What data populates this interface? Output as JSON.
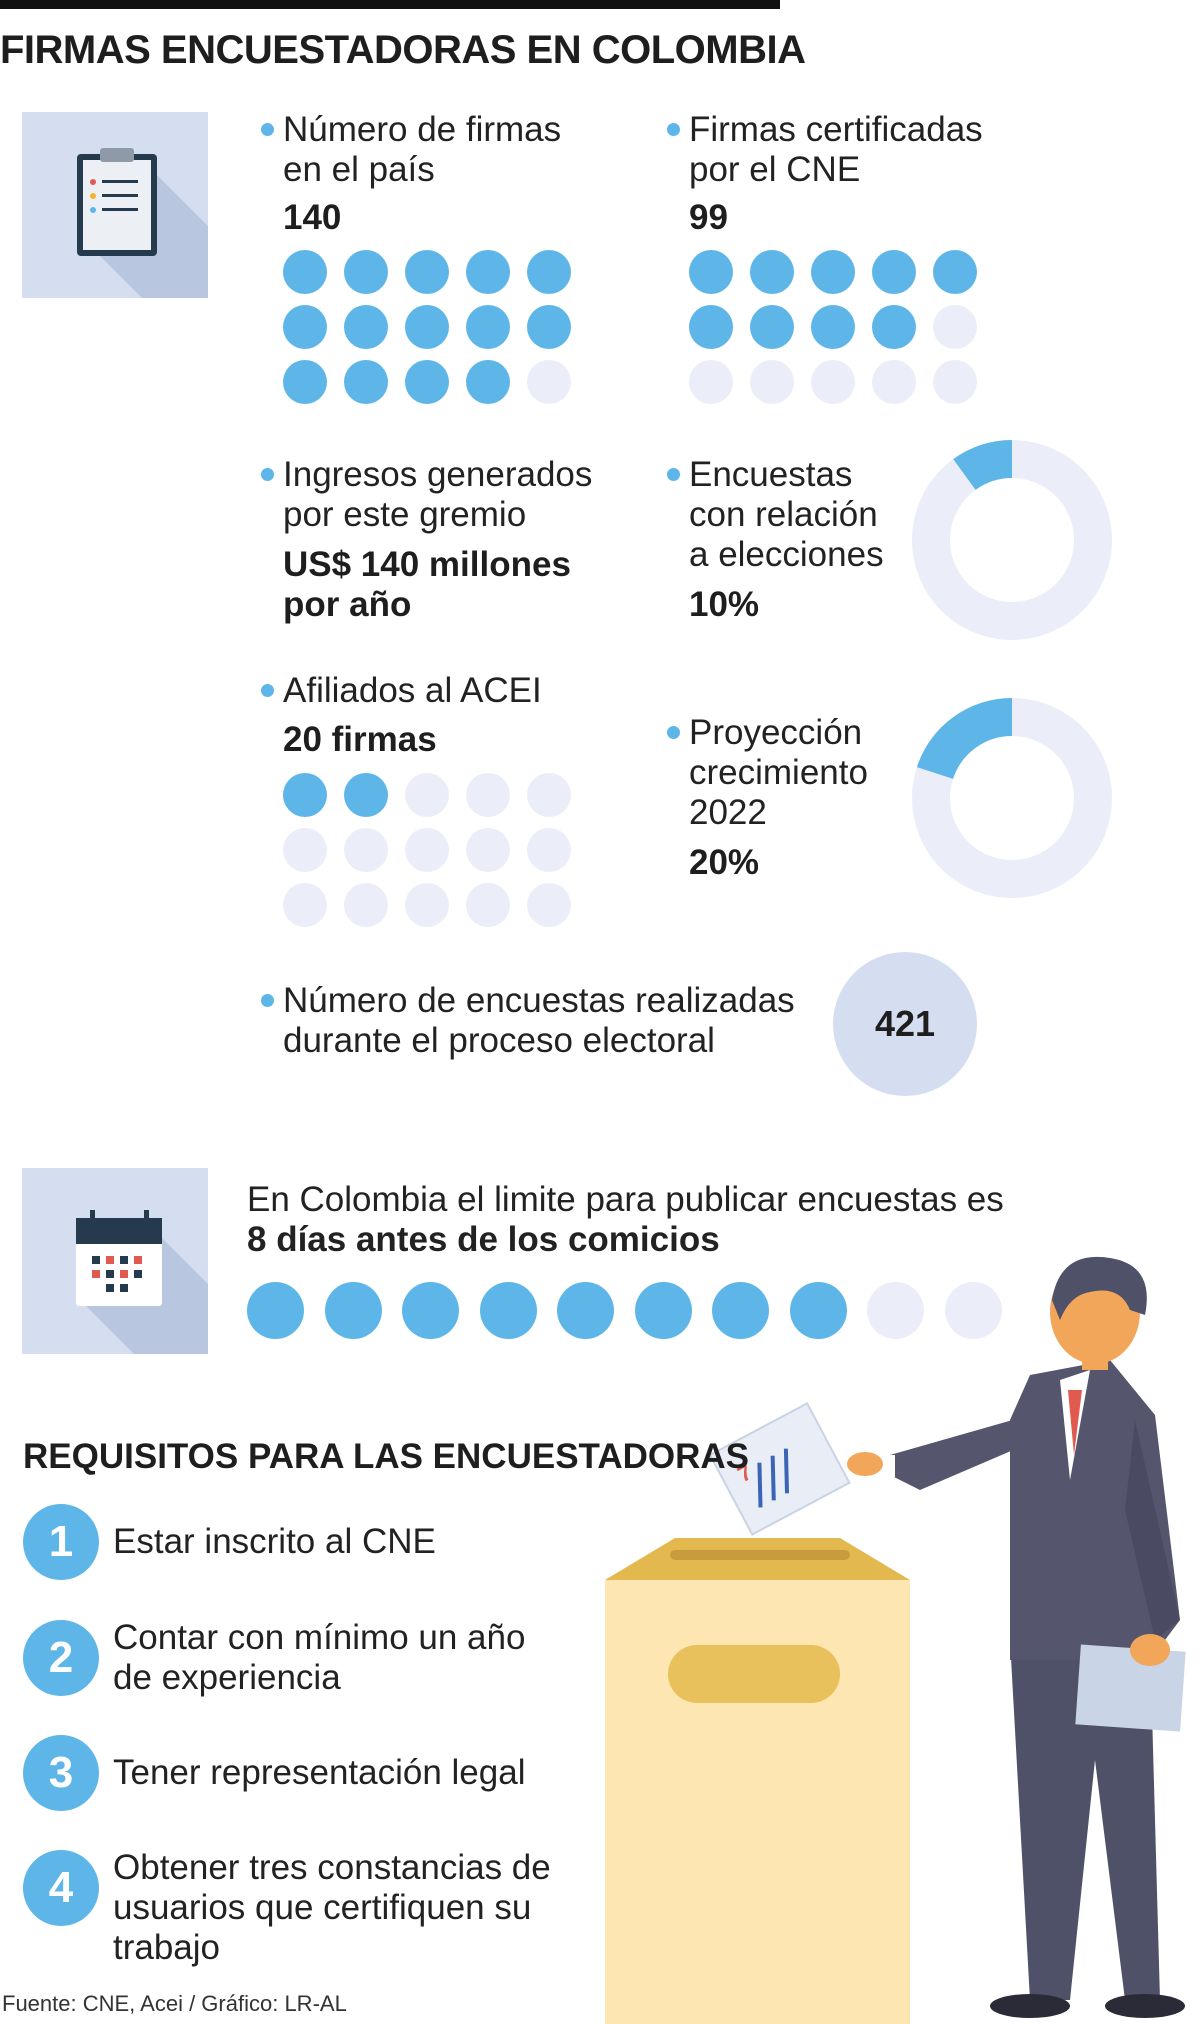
{
  "title": "FIRMAS ENCUESTADORAS EN COLOMBIA",
  "colors": {
    "accent": "#5eb6e8",
    "inactive": "#ebeef8",
    "panel": "#d5def0"
  },
  "stats": {
    "firmas": {
      "label1": "Número de firmas",
      "label2": "en el país",
      "value": "140",
      "filled": 14,
      "total": 15
    },
    "certificadas": {
      "label1": "Firmas certificadas",
      "label2": "por el CNE",
      "value": "99",
      "filled": 9,
      "total": 15
    },
    "ingresos": {
      "label1": "Ingresos generados",
      "label2": "por este gremio",
      "value1": "US$ 140 millones",
      "value2": "por año"
    },
    "elecciones": {
      "label1": "Encuestas",
      "label2": "con relación",
      "label3": "a elecciones",
      "value": "10%",
      "percent": 10
    },
    "acei": {
      "label": "Afiliados al ACEI",
      "value": "20 firmas",
      "filled": 2,
      "total": 15
    },
    "proyeccion": {
      "label1": "Proyección",
      "label2": "crecimiento",
      "label3": "2022",
      "value": "20%",
      "percent": 20
    },
    "encuestas": {
      "label1": "Número de encuestas realizadas",
      "label2": "durante el proceso electoral",
      "value": "421"
    }
  },
  "limite": {
    "text": "En Colombia el limite para publicar encuestas es",
    "bold": "8 días antes de los comicios",
    "filled": 8,
    "total": 10
  },
  "requisitos": {
    "title": "REQUISITOS PARA LAS ENCUESTADORAS",
    "items": [
      {
        "num": "1",
        "lines": [
          "Estar inscrito al CNE"
        ]
      },
      {
        "num": "2",
        "lines": [
          "Contar con mínimo un año",
          "de experiencia"
        ]
      },
      {
        "num": "3",
        "lines": [
          "Tener representación legal"
        ]
      },
      {
        "num": "4",
        "lines": [
          "Obtener tres constancias de",
          "usuarios que certifiquen su",
          "trabajo"
        ]
      }
    ]
  },
  "ballot_mark": "7",
  "source": "Fuente: CNE, Acei / Gráfico: LR-AL",
  "icons": [
    "clipboard-icon",
    "calendar-icon"
  ]
}
